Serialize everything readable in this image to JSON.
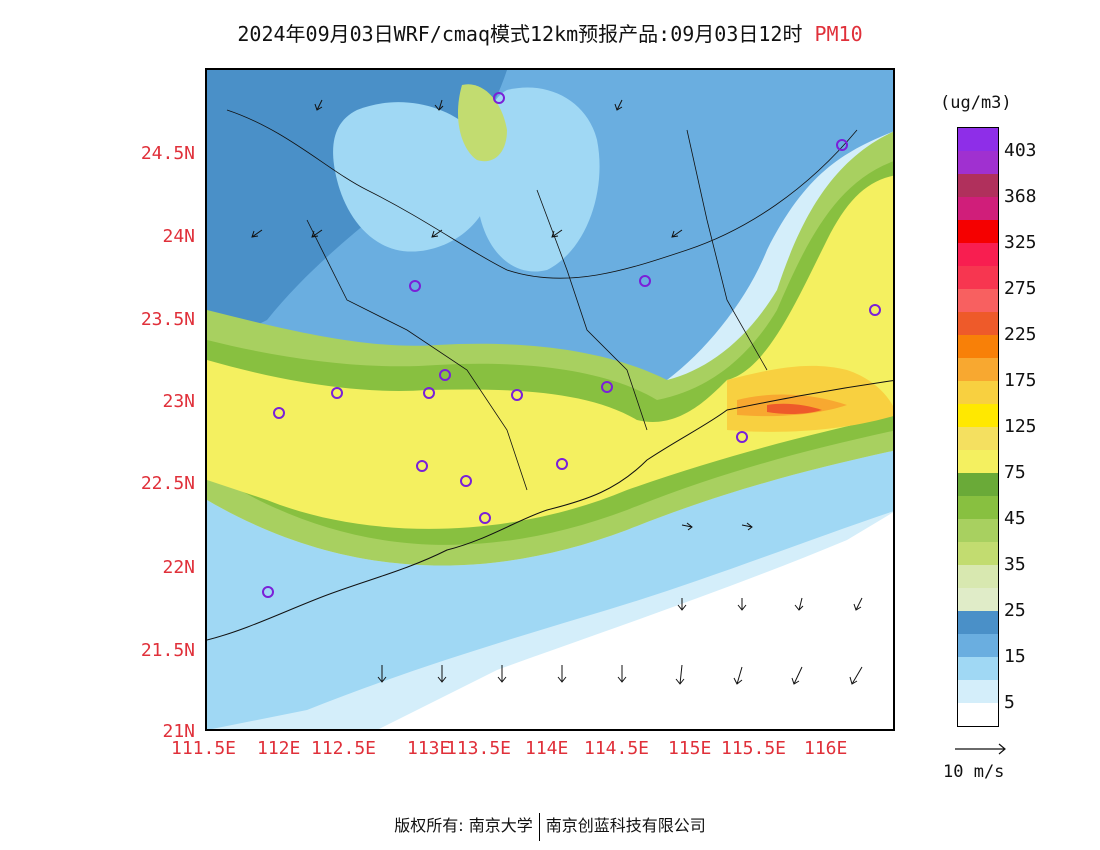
{
  "title": {
    "main": "2024年09月03日WRF/cmaq模式12km预报产品:09月03日12时",
    "variable": "PM10"
  },
  "axes": {
    "y_ticks": [
      "24.5N",
      "24N",
      "23.5N",
      "23N",
      "22.5N",
      "22N",
      "21.5N",
      "21N"
    ],
    "x_ticks": [
      "111.5E",
      "112E",
      "112.5E",
      "113E",
      "113.5E",
      "114E",
      "114.5E",
      "115E",
      "115.5E",
      "116E"
    ]
  },
  "legend": {
    "unit": "(ug/m3)",
    "levels": [
      {
        "label": "403",
        "color": "#8e2ee8"
      },
      {
        "label": "",
        "color": "#a030d0"
      },
      {
        "label": "368",
        "color": "#b0305c"
      },
      {
        "label": "",
        "color": "#d01e7a"
      },
      {
        "label": "325",
        "color": "#f50000"
      },
      {
        "label": "",
        "color": "#f81e50"
      },
      {
        "label": "275",
        "color": "#f73650"
      },
      {
        "label": "",
        "color": "#f86060"
      },
      {
        "label": "225",
        "color": "#ee5a2a"
      },
      {
        "label": "",
        "color": "#f88008"
      },
      {
        "label": "175",
        "color": "#f8a830"
      },
      {
        "label": "",
        "color": "#f8d040"
      },
      {
        "label": "125",
        "color": "#ffe800"
      },
      {
        "label": "",
        "color": "#f4e060"
      },
      {
        "label": "75",
        "color": "#f4f060"
      },
      {
        "label": "",
        "color": "#6aaa38"
      },
      {
        "label": "45",
        "color": "#88c040"
      },
      {
        "label": "",
        "color": "#a8d060"
      },
      {
        "label": "35",
        "color": "#c2dc70"
      },
      {
        "label": "",
        "color": "#d8e8b0"
      },
      {
        "label": "25",
        "color": "#e0ecc8"
      },
      {
        "label": "",
        "color": "#4a90c8"
      },
      {
        "label": "15",
        "color": "#6aaee0"
      },
      {
        "label": "",
        "color": "#a0d8f4"
      },
      {
        "label": "5",
        "color": "#d4eefa"
      },
      {
        "label": "",
        "color": "#ffffff"
      }
    ]
  },
  "wind_key": {
    "label": "10 m/s"
  },
  "footer": {
    "left": "版权所有: 南京大学",
    "right": "南京创蓝科技有限公司"
  }
}
